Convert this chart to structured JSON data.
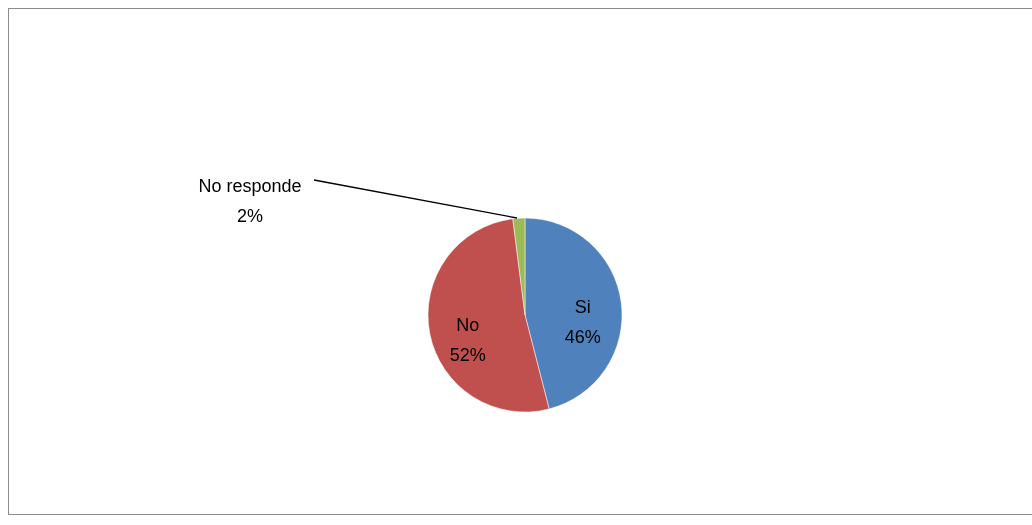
{
  "chart_data": {
    "type": "pie",
    "categories": [
      "Si",
      "No",
      "No responde"
    ],
    "values": [
      46,
      52,
      2
    ],
    "colors": [
      "#4f81bd",
      "#c0504d",
      "#9bbb59"
    ],
    "value_labels": [
      "46%",
      "52%",
      "2%"
    ]
  }
}
